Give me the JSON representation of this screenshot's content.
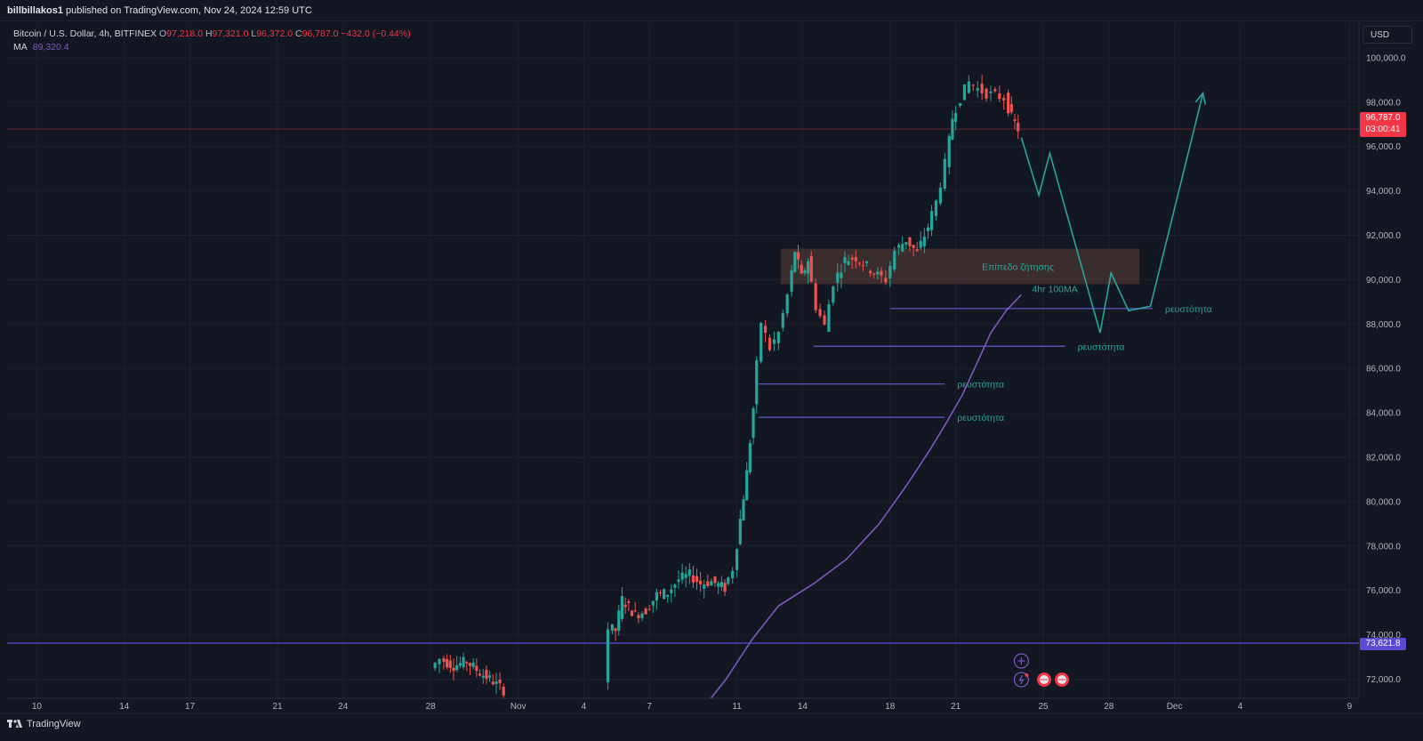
{
  "publish_info": {
    "user": "billbillakos1",
    "text": " published on TradingView.com, Nov 24, 2024 12:59 UTC"
  },
  "legend": {
    "symbol": "Bitcoin / U.S. Dollar, 4h, BITFINEX",
    "o_label": "O",
    "o_value": "97,218.0",
    "h_label": "H",
    "h_value": "97,321.0",
    "l_label": "L",
    "l_value": "96,372.0",
    "c_label": "C",
    "c_value": "96,787.0",
    "change": "−432.0 (−0.44%)",
    "ma_label": "MA",
    "ma_value": "89,320.4"
  },
  "currency_button": "USD",
  "price_tags": {
    "last_price": "96,787.0",
    "countdown": "03:00:41",
    "level": "73,621.8"
  },
  "colors": {
    "up": "#26a69a",
    "down": "#ef5350",
    "ma": "#7e57c2",
    "projection": "#26a69a",
    "zone": "#5d4037"
  },
  "brand": "TradingView",
  "chart_data": {
    "type": "candlestick",
    "timeframe": "4h",
    "ylim": [
      71000,
      100800
    ],
    "y_ticks": [
      72000,
      74000,
      76000,
      78000,
      80000,
      82000,
      84000,
      86000,
      88000,
      90000,
      92000,
      94000,
      96000,
      98000,
      100000
    ],
    "y_tick_labels": [
      "72,000.0",
      "74,000.0",
      "76,000.0",
      "78,000.0",
      "80,000.0",
      "82,000.0",
      "84,000.0",
      "86,000.0",
      "88,000.0",
      "90,000.0",
      "92,000.0",
      "94,000.0",
      "96,000.0",
      "98,000.0",
      "100,000.0"
    ],
    "x_ticks": [
      {
        "label": "10",
        "day": -21
      },
      {
        "label": "14",
        "day": -17
      },
      {
        "label": "17",
        "day": -14
      },
      {
        "label": "21",
        "day": -10
      },
      {
        "label": "24",
        "day": -7
      },
      {
        "label": "28",
        "day": -3
      },
      {
        "label": "Nov",
        "day": 1
      },
      {
        "label": "4",
        "day": 4
      },
      {
        "label": "7",
        "day": 7
      },
      {
        "label": "11",
        "day": 11
      },
      {
        "label": "14",
        "day": 14
      },
      {
        "label": "18",
        "day": 18
      },
      {
        "label": "21",
        "day": 21
      },
      {
        "label": "25",
        "day": 25
      },
      {
        "label": "28",
        "day": 28
      },
      {
        "label": "Dec",
        "day": 31
      },
      {
        "label": "4",
        "day": 34
      },
      {
        "label": "9",
        "day": 39
      }
    ],
    "anchor_closes": [
      [
        -2.8,
        72500
      ],
      [
        -2.4,
        72900
      ],
      [
        -1.8,
        72600
      ],
      [
        -1.2,
        72800
      ],
      [
        -0.6,
        72300
      ],
      [
        0,
        71900
      ],
      [
        0.5,
        71500
      ],
      [
        5.1,
        72000
      ],
      [
        5.3,
        74300
      ],
      [
        5.6,
        74200
      ],
      [
        5.9,
        75600
      ],
      [
        6.5,
        74900
      ],
      [
        7.0,
        75100
      ],
      [
        7.5,
        75800
      ],
      [
        8.0,
        75900
      ],
      [
        8.5,
        76500
      ],
      [
        9.0,
        76700
      ],
      [
        9.5,
        76300
      ],
      [
        10.0,
        76400
      ],
      [
        10.6,
        76100
      ],
      [
        11.0,
        77000
      ],
      [
        11.3,
        79200
      ],
      [
        11.6,
        81300
      ],
      [
        11.9,
        84200
      ],
      [
        12.3,
        88100
      ],
      [
        12.7,
        86900
      ],
      [
        13.1,
        87600
      ],
      [
        13.5,
        89300
      ],
      [
        13.8,
        91300
      ],
      [
        14.1,
        90100
      ],
      [
        14.4,
        90900
      ],
      [
        14.8,
        88800
      ],
      [
        15.2,
        87900
      ],
      [
        15.6,
        89900
      ],
      [
        16.1,
        90900
      ],
      [
        16.6,
        91000
      ],
      [
        17.1,
        90600
      ],
      [
        17.6,
        90200
      ],
      [
        18.0,
        90000
      ],
      [
        18.4,
        91300
      ],
      [
        18.9,
        91800
      ],
      [
        19.4,
        91200
      ],
      [
        19.9,
        92400
      ],
      [
        20.3,
        93500
      ],
      [
        20.7,
        95200
      ],
      [
        21.0,
        97300
      ],
      [
        21.4,
        98200
      ],
      [
        21.8,
        98900
      ],
      [
        22.2,
        98600
      ],
      [
        22.6,
        98400
      ],
      [
        23.0,
        98300
      ],
      [
        23.4,
        98200
      ],
      [
        23.7,
        97300
      ],
      [
        24.0,
        96787
      ]
    ],
    "moving_average": {
      "name": "4hr 100MA",
      "points": [
        [
          9.7,
          71000
        ],
        [
          10.5,
          72000
        ],
        [
          11.7,
          73800
        ],
        [
          12.9,
          75300
        ],
        [
          14.5,
          76300
        ],
        [
          16.0,
          77400
        ],
        [
          17.5,
          79000
        ],
        [
          18.8,
          80800
        ],
        [
          19.8,
          82300
        ],
        [
          20.6,
          83600
        ],
        [
          21.3,
          84800
        ],
        [
          22.0,
          86300
        ],
        [
          22.6,
          87600
        ],
        [
          23.3,
          88600
        ],
        [
          24.0,
          89320
        ]
      ]
    },
    "horizontal_level": {
      "price": 73621.8
    },
    "demand_zone": {
      "label": "Επίπεδο ζήτησης",
      "day_start": 13.0,
      "day_end": 29.4,
      "price_low": 89800,
      "price_high": 91400
    },
    "liquidity_lines": [
      {
        "label": "ρευστότητα",
        "price": 88700,
        "day_start": 18.0,
        "day_end": 30.0
      },
      {
        "label": "ρευστότητα",
        "price": 87000,
        "day_start": 14.5,
        "day_end": 26.0
      },
      {
        "label": "ρευστότητα",
        "price": 85300,
        "day_start": 12.0,
        "day_end": 20.5
      },
      {
        "label": "ρευστότητα",
        "price": 83800,
        "day_start": 12.0,
        "day_end": 20.5
      }
    ],
    "projection_path": [
      [
        24.0,
        96400
      ],
      [
        24.8,
        93800
      ],
      [
        25.3,
        95700
      ],
      [
        27.6,
        87600
      ],
      [
        28.1,
        90300
      ],
      [
        28.9,
        88600
      ],
      [
        29.9,
        88800
      ],
      [
        32.3,
        98400
      ]
    ]
  }
}
